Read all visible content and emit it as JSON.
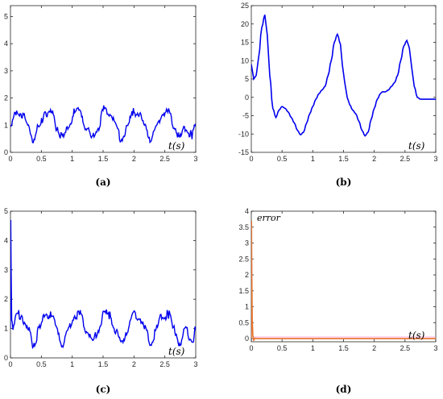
{
  "chart_data": [
    {
      "panel": "a",
      "caption": "(a)",
      "type": "line",
      "xlabel": "t(s)",
      "xlim": [
        0,
        3
      ],
      "ylim": [
        0,
        5.4
      ],
      "x_ticks": [
        0,
        0.5,
        1,
        1.5,
        2,
        2.5,
        3
      ],
      "y_ticks": [
        0,
        1,
        2,
        3,
        4,
        5
      ],
      "series": [
        {
          "color": "#0000ee",
          "x": [
            0,
            0.1,
            0.18,
            0.28,
            0.37,
            0.47,
            0.56,
            0.66,
            0.75,
            0.85,
            0.94,
            1.04,
            1.13,
            1.23,
            1.32,
            1.42,
            1.51,
            1.61,
            1.7,
            1.8,
            1.89,
            1.99,
            2.08,
            2.18,
            2.27,
            2.37,
            2.46,
            2.56,
            2.65,
            2.75,
            2.84,
            2.94,
            3.0
          ],
          "y": [
            0.95,
            1.5,
            1.45,
            0.95,
            0.5,
            0.95,
            1.5,
            1.45,
            0.95,
            0.5,
            0.95,
            1.5,
            1.45,
            0.95,
            0.5,
            0.95,
            1.55,
            1.45,
            0.95,
            0.5,
            0.95,
            1.5,
            1.45,
            0.95,
            0.5,
            0.95,
            1.5,
            1.45,
            0.95,
            0.5,
            0.95,
            0.6,
            0.95
          ]
        }
      ]
    },
    {
      "panel": "b",
      "caption": "(b)",
      "type": "line",
      "xlabel": "t(s)",
      "xlim": [
        0,
        3
      ],
      "ylim": [
        -15,
        25
      ],
      "x_ticks": [
        0,
        0.5,
        1,
        1.5,
        2,
        2.5,
        3
      ],
      "y_ticks": [
        -15,
        -10,
        -5,
        0,
        5,
        10,
        15,
        20,
        25
      ],
      "series": [
        {
          "color": "#0000ee",
          "x": [
            0,
            0.04,
            0.08,
            0.12,
            0.17,
            0.22,
            0.26,
            0.3,
            0.35,
            0.4,
            0.45,
            0.5,
            0.55,
            0.6,
            0.65,
            0.7,
            0.75,
            0.8,
            0.85,
            0.9,
            0.95,
            1.0,
            1.05,
            1.1,
            1.15,
            1.2,
            1.25,
            1.3,
            1.35,
            1.4,
            1.45,
            1.48,
            1.52,
            1.56,
            1.6,
            1.65,
            1.7,
            1.75,
            1.8,
            1.85,
            1.9,
            1.95,
            2.0,
            2.05,
            2.1,
            2.13,
            2.18,
            2.23,
            2.28,
            2.33,
            2.38,
            2.43,
            2.48,
            2.53,
            2.57,
            2.61,
            2.65,
            2.7,
            2.75,
            2.8,
            2.85,
            2.9,
            2.95,
            3.0
          ],
          "y": [
            9,
            5,
            6,
            11,
            19,
            22.5,
            17,
            6,
            -3,
            -5.5,
            -3.5,
            -2.5,
            -3,
            -4,
            -5.5,
            -7,
            -9,
            -10.2,
            -9.5,
            -7,
            -4.5,
            -2.5,
            -0.5,
            1,
            2,
            3,
            6,
            10,
            15,
            17.2,
            14.5,
            9,
            4,
            0,
            -2,
            -3.5,
            -4.5,
            -6.5,
            -9,
            -10.5,
            -9.5,
            -6,
            -3,
            -0.5,
            1,
            1.5,
            1.5,
            2,
            3,
            4,
            6,
            10,
            14,
            15.5,
            13.5,
            8,
            3,
            0,
            -0.5,
            -0.5,
            -0.5,
            -0.5,
            -0.5,
            -0.5
          ]
        }
      ]
    },
    {
      "panel": "c",
      "caption": "(c)",
      "type": "line",
      "xlabel": "t(s)",
      "xlim": [
        0,
        3
      ],
      "ylim": [
        0,
        5
      ],
      "x_ticks": [
        0,
        0.5,
        1,
        1.5,
        2,
        2.5,
        3
      ],
      "y_ticks": [
        0,
        1,
        2,
        3,
        4,
        5
      ],
      "series": [
        {
          "color": "#0000ee",
          "x": [
            0,
            0.005,
            0.01,
            0.02,
            0.04,
            0.1,
            0.18,
            0.28,
            0.37,
            0.47,
            0.56,
            0.66,
            0.75,
            0.85,
            0.94,
            1.04,
            1.13,
            1.23,
            1.32,
            1.42,
            1.51,
            1.61,
            1.7,
            1.8,
            1.89,
            1.99,
            2.08,
            2.18,
            2.27,
            2.37,
            2.46,
            2.56,
            2.65,
            2.75,
            2.84,
            2.94,
            3.0
          ],
          "y": [
            1.0,
            4.7,
            3.2,
            1.3,
            1.1,
            1.5,
            1.45,
            0.95,
            0.5,
            0.95,
            1.5,
            1.45,
            0.95,
            0.5,
            0.95,
            1.5,
            1.45,
            0.95,
            0.5,
            0.95,
            1.55,
            1.45,
            0.95,
            0.5,
            0.95,
            1.5,
            1.45,
            0.95,
            0.5,
            0.95,
            1.5,
            1.45,
            0.95,
            0.5,
            0.95,
            0.6,
            0.95
          ]
        }
      ]
    },
    {
      "panel": "d",
      "caption": "(d)",
      "type": "line",
      "xlabel": "t(s)",
      "annotation": "error",
      "xlim": [
        0,
        3
      ],
      "ylim": [
        -0.1,
        4
      ],
      "x_ticks": [
        0,
        0.5,
        1,
        1.5,
        2,
        2.5,
        3
      ],
      "y_ticks": [
        0,
        0.5,
        1,
        1.5,
        2,
        2.5,
        3,
        3.5,
        4
      ],
      "band": {
        "y0": 0.0,
        "y1": 0.08,
        "color": "#ffd9ef"
      },
      "series": [
        {
          "color": "#e8722a",
          "x": [
            0,
            0.003,
            0.008,
            0.015,
            0.025,
            0.04,
            0.06,
            0.1,
            0.3,
            1,
            2,
            3
          ],
          "y": [
            0,
            3.7,
            2.0,
            0.6,
            0.1,
            -0.05,
            0.01,
            0.0,
            0.0,
            0.0,
            0.0,
            0.0
          ]
        }
      ]
    }
  ]
}
